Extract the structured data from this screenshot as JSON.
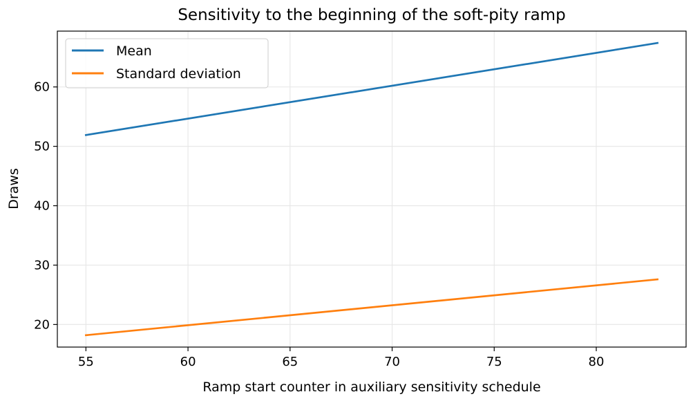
{
  "chart_data": {
    "type": "line",
    "title": "Sensitivity to the beginning of the soft-pity ramp",
    "xlabel": "Ramp start counter in auxiliary sensitivity schedule",
    "ylabel": "Draws",
    "xlim": [
      53.6,
      84.4
    ],
    "ylim": [
      16.2,
      69.4
    ],
    "xticks": [
      55,
      60,
      65,
      70,
      75,
      80
    ],
    "yticks": [
      20,
      30,
      40,
      50,
      60
    ],
    "grid": true,
    "legend_position": "top-left",
    "series": [
      {
        "name": "Mean",
        "color": "#1f77b4",
        "x": [
          55,
          83
        ],
        "y": [
          51.9,
          67.4
        ]
      },
      {
        "name": "Standard deviation",
        "color": "#ff7f0e",
        "x": [
          55,
          83
        ],
        "y": [
          18.2,
          27.6
        ]
      }
    ]
  }
}
